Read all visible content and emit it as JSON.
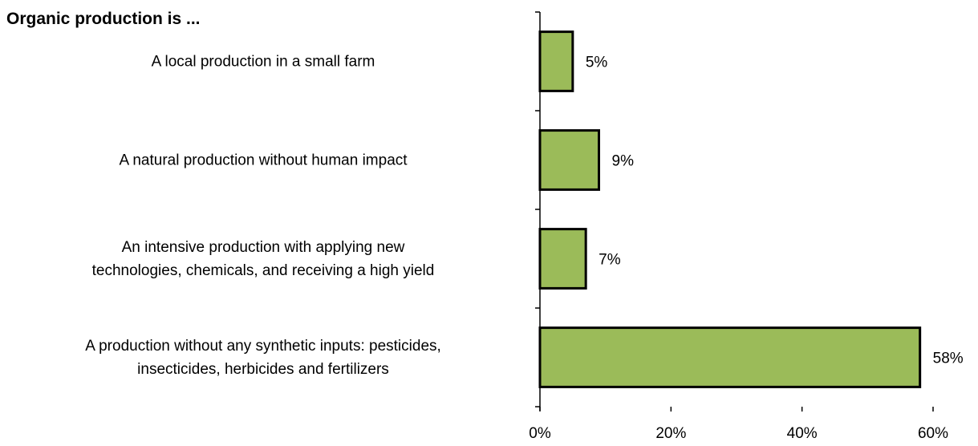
{
  "chart_data": {
    "type": "bar",
    "orientation": "horizontal",
    "title": "Organic production is ...",
    "categories": [
      "A local production in a small farm",
      "A natural production without human impact",
      "An intensive production with applying new\ntechnologies, chemicals, and receiving a high yield",
      "A production without any synthetic inputs: pesticides,\ninsecticides, herbicides and fertilizers"
    ],
    "values": [
      5,
      9,
      7,
      58
    ],
    "value_labels": [
      "5%",
      "9%",
      "7%",
      "58%"
    ],
    "color": "#9bbb59",
    "xlim": [
      0,
      60
    ],
    "xticks": [
      {
        "value": 0,
        "label": "0%"
      },
      {
        "value": 20,
        "label": "20%"
      },
      {
        "value": 40,
        "label": "40%"
      },
      {
        "value": 60,
        "label": "60%"
      }
    ],
    "grid": false
  }
}
